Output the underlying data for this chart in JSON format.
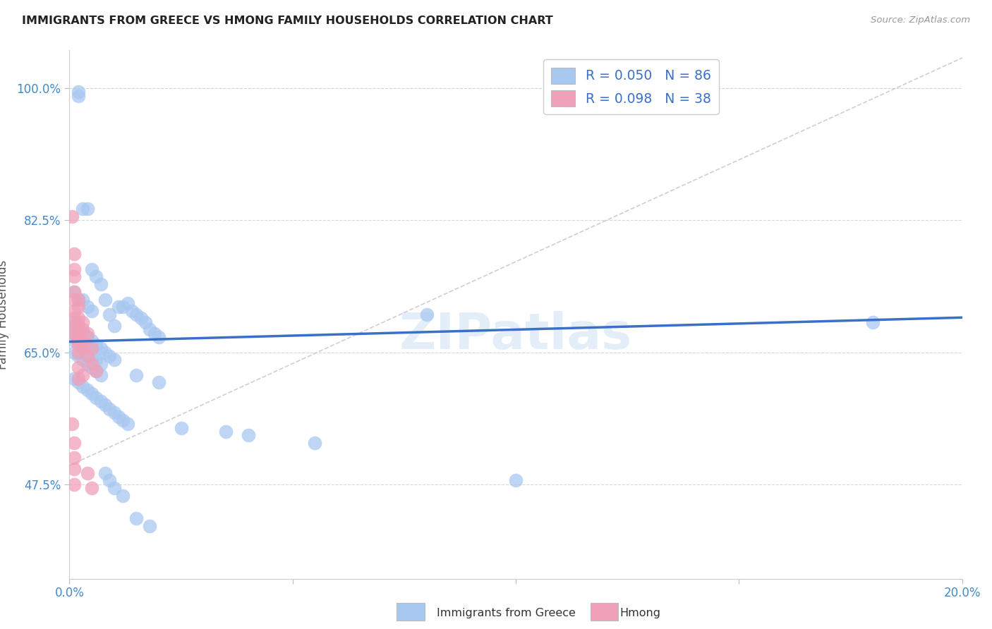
{
  "title": "IMMIGRANTS FROM GREECE VS HMONG FAMILY HOUSEHOLDS CORRELATION CHART",
  "source": "Source: ZipAtlas.com",
  "xlabel_label": "Immigrants from Greece",
  "ylabel_label": "Family Households",
  "xlim": [
    0.0,
    0.2
  ],
  "ylim": [
    0.35,
    1.05
  ],
  "yticks": [
    0.475,
    0.65,
    0.825,
    1.0
  ],
  "yticklabels": [
    "47.5%",
    "65.0%",
    "82.5%",
    "100.0%"
  ],
  "blue_color": "#A8C8F0",
  "pink_color": "#F0A0B8",
  "blue_line_color": "#3A70C8",
  "pink_line_color": "#D08090",
  "diag_line_color": "#C8C0C8",
  "grid_color": "#CCCCCC",
  "background_color": "#FFFFFF",
  "watermark": "ZIPatlas",
  "blue_scatter_x": [
    0.002,
    0.002,
    0.003,
    0.004,
    0.005,
    0.006,
    0.007,
    0.008,
    0.009,
    0.01,
    0.011,
    0.012,
    0.013,
    0.014,
    0.015,
    0.016,
    0.017,
    0.018,
    0.019,
    0.02,
    0.001,
    0.002,
    0.003,
    0.004,
    0.005,
    0.001,
    0.002,
    0.003,
    0.004,
    0.005,
    0.001,
    0.002,
    0.003,
    0.004,
    0.005,
    0.006,
    0.007,
    0.008,
    0.009,
    0.01,
    0.001,
    0.002,
    0.003,
    0.004,
    0.005,
    0.006,
    0.007,
    0.001,
    0.002,
    0.003,
    0.004,
    0.005,
    0.006,
    0.007,
    0.008,
    0.009,
    0.01,
    0.011,
    0.012,
    0.013,
    0.015,
    0.02,
    0.025,
    0.035,
    0.04,
    0.055,
    0.08,
    0.1,
    0.18,
    0.001,
    0.001,
    0.002,
    0.002,
    0.003,
    0.003,
    0.004,
    0.005,
    0.006,
    0.007,
    0.008,
    0.009,
    0.01,
    0.012,
    0.015,
    0.018
  ],
  "blue_scatter_y": [
    0.99,
    0.995,
    0.84,
    0.84,
    0.76,
    0.75,
    0.74,
    0.72,
    0.7,
    0.685,
    0.71,
    0.71,
    0.715,
    0.705,
    0.7,
    0.695,
    0.69,
    0.68,
    0.675,
    0.67,
    0.73,
    0.72,
    0.72,
    0.71,
    0.705,
    0.69,
    0.68,
    0.675,
    0.67,
    0.665,
    0.665,
    0.67,
    0.665,
    0.66,
    0.655,
    0.66,
    0.655,
    0.65,
    0.645,
    0.64,
    0.65,
    0.645,
    0.64,
    0.635,
    0.63,
    0.625,
    0.62,
    0.615,
    0.61,
    0.605,
    0.6,
    0.595,
    0.59,
    0.585,
    0.58,
    0.575,
    0.57,
    0.565,
    0.56,
    0.555,
    0.62,
    0.61,
    0.55,
    0.545,
    0.54,
    0.53,
    0.7,
    0.48,
    0.69,
    0.68,
    0.675,
    0.67,
    0.665,
    0.66,
    0.655,
    0.65,
    0.645,
    0.64,
    0.635,
    0.49,
    0.48,
    0.47,
    0.46,
    0.43,
    0.42
  ],
  "pink_scatter_x": [
    0.0005,
    0.001,
    0.001,
    0.001,
    0.001,
    0.001,
    0.001,
    0.001,
    0.001,
    0.001,
    0.002,
    0.002,
    0.002,
    0.002,
    0.002,
    0.002,
    0.002,
    0.003,
    0.003,
    0.003,
    0.003,
    0.004,
    0.004,
    0.005,
    0.005,
    0.006,
    0.0005,
    0.001,
    0.001,
    0.001,
    0.001,
    0.002,
    0.002,
    0.002,
    0.002,
    0.003,
    0.004,
    0.005
  ],
  "pink_scatter_y": [
    0.83,
    0.78,
    0.76,
    0.75,
    0.73,
    0.72,
    0.705,
    0.695,
    0.685,
    0.675,
    0.72,
    0.71,
    0.695,
    0.685,
    0.665,
    0.65,
    0.63,
    0.69,
    0.68,
    0.665,
    0.655,
    0.675,
    0.645,
    0.655,
    0.635,
    0.625,
    0.555,
    0.53,
    0.51,
    0.495,
    0.475,
    0.66,
    0.665,
    0.67,
    0.615,
    0.62,
    0.49,
    0.47
  ],
  "blue_trendline_x": [
    0.0,
    0.2
  ],
  "blue_trendline_y": [
    0.664,
    0.696
  ],
  "diag_trendline_x": [
    0.0,
    0.2
  ],
  "diag_trendline_y": [
    0.5,
    1.04
  ]
}
